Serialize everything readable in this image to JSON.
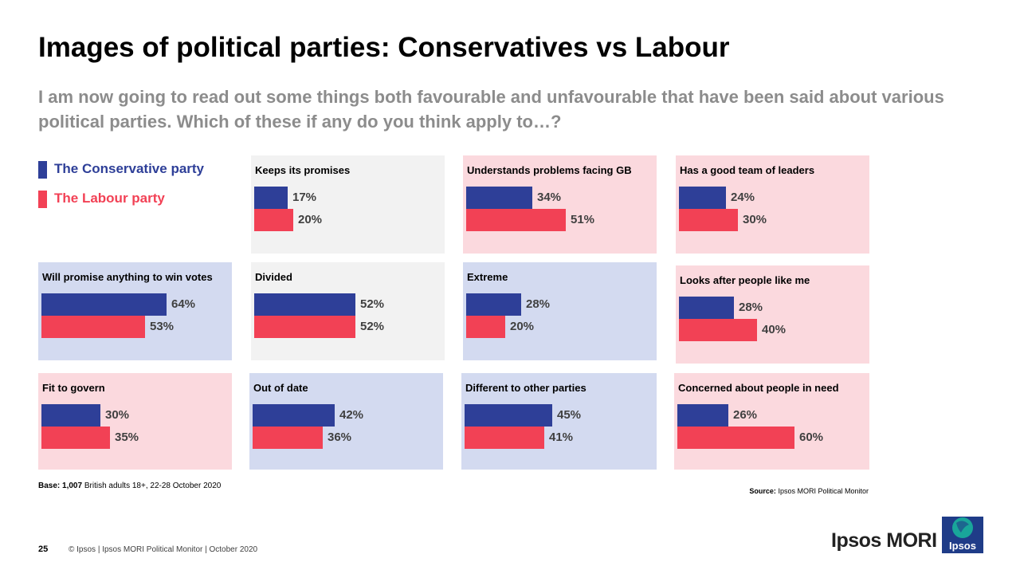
{
  "title": "Images of political parties: Conservatives vs Labour",
  "subtitle": "I am now going to read out some things both favourable and unfavourable that have been said about various political parties. Which of these if any do you think apply to…?",
  "colors": {
    "conservative": "#2e3f98",
    "labour": "#f24155",
    "panel_grey": "#f2f2f2",
    "panel_pink": "#fbd9de",
    "panel_blue": "#d3daf0"
  },
  "legend": [
    {
      "label": "The Conservative party",
      "color": "#2e3f98"
    },
    {
      "label": "The Labour party",
      "color": "#f24155"
    }
  ],
  "chart_data": {
    "type": "bar",
    "unit": "%",
    "series_names": [
      "The Conservative party",
      "The Labour party"
    ],
    "panels": [
      {
        "label": "Keeps its promises",
        "conservative": 17,
        "labour": 20,
        "bg": "grey"
      },
      {
        "label": "Understands problems facing GB",
        "conservative": 34,
        "labour": 51,
        "bg": "pink"
      },
      {
        "label": "Has a good team of leaders",
        "conservative": 24,
        "labour": 30,
        "bg": "pink"
      },
      {
        "label": "Will promise anything to win votes",
        "conservative": 64,
        "labour": 53,
        "bg": "blue"
      },
      {
        "label": "Divided",
        "conservative": 52,
        "labour": 52,
        "bg": "grey"
      },
      {
        "label": "Extreme",
        "conservative": 28,
        "labour": 20,
        "bg": "blue"
      },
      {
        "label": "Looks after people like me",
        "conservative": 28,
        "labour": 40,
        "bg": "pink"
      },
      {
        "label": "Fit to govern",
        "conservative": 30,
        "labour": 35,
        "bg": "pink"
      },
      {
        "label": "Out of date",
        "conservative": 42,
        "labour": 36,
        "bg": "blue"
      },
      {
        "label": "Different to other parties",
        "conservative": 45,
        "labour": 41,
        "bg": "blue"
      },
      {
        "label": "Concerned about people in need",
        "conservative": 26,
        "labour": 60,
        "bg": "pink"
      }
    ]
  },
  "notes": {
    "base_label": "Base:",
    "base_count": "1,007",
    "base_text": "British adults 18+,  22-28 October 2020",
    "source_label": "Source:",
    "source_text": "Ipsos MORI Political Monitor"
  },
  "footer": {
    "page_number": "25",
    "text": "© Ipsos | Ipsos MORI  Political Monitor | October 2020",
    "brand": "Ipsos MORI",
    "logo_text": "Ipsos"
  }
}
